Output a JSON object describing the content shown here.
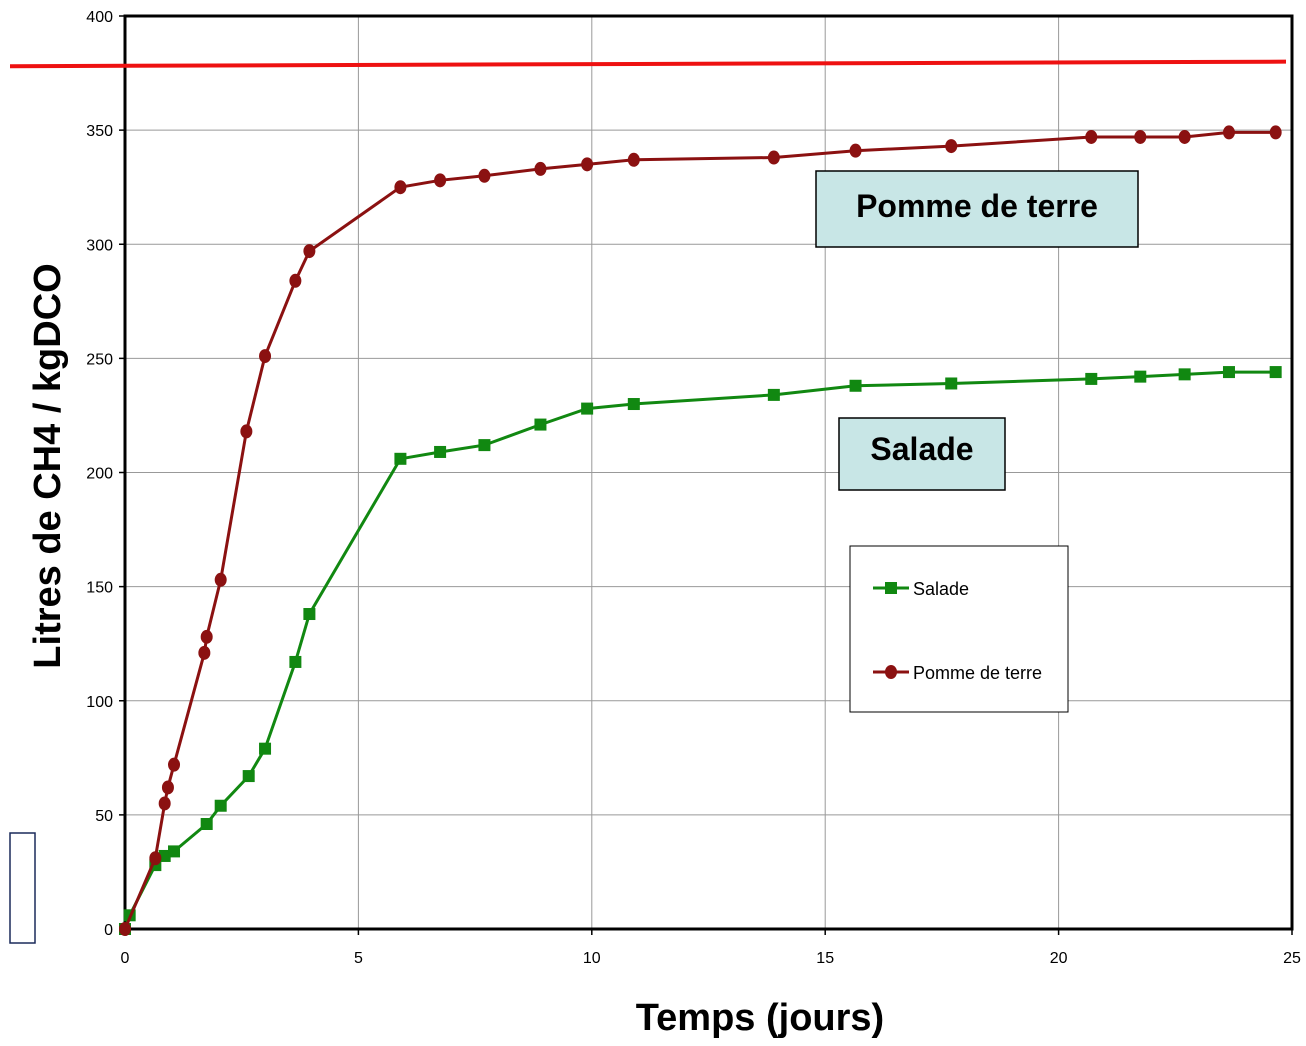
{
  "chart_data": {
    "type": "line",
    "xlabel": "Temps (jours)",
    "ylabel": "Litres de CH4 / kgDCO",
    "xlim": [
      0,
      25
    ],
    "ylim": [
      0,
      400
    ],
    "x_ticks": [
      0,
      5,
      10,
      15,
      20,
      25
    ],
    "y_ticks": [
      0,
      50,
      100,
      150,
      200,
      250,
      300,
      350,
      400
    ],
    "grid": true,
    "legend_position": "center-right",
    "reference_line": {
      "y_start": 378,
      "y_end": 380,
      "color": "#ee1111"
    },
    "series": [
      {
        "name": "Salade",
        "color": "#118811",
        "marker": "square",
        "points": [
          [
            0,
            0
          ],
          [
            0.1,
            6
          ],
          [
            0.65,
            28
          ],
          [
            0.85,
            32
          ],
          [
            1.05,
            34
          ],
          [
            1.75,
            46
          ],
          [
            2.05,
            54
          ],
          [
            2.65,
            67
          ],
          [
            3.0,
            79
          ],
          [
            3.65,
            117
          ],
          [
            3.95,
            138
          ],
          [
            5.9,
            206
          ],
          [
            6.75,
            209
          ],
          [
            7.7,
            212
          ],
          [
            8.9,
            221
          ],
          [
            9.9,
            228
          ],
          [
            10.9,
            230
          ],
          [
            13.9,
            234
          ],
          [
            15.65,
            238
          ],
          [
            17.7,
            239
          ],
          [
            20.7,
            241
          ],
          [
            21.75,
            242
          ],
          [
            22.7,
            243
          ],
          [
            23.65,
            244
          ],
          [
            24.65,
            244
          ]
        ]
      },
      {
        "name": "Pomme de terre",
        "color": "#8b1111",
        "marker": "circle",
        "points": [
          [
            0,
            0
          ],
          [
            0.65,
            31
          ],
          [
            0.85,
            55
          ],
          [
            0.92,
            62
          ],
          [
            1.05,
            72
          ],
          [
            1.7,
            121
          ],
          [
            1.75,
            128
          ],
          [
            2.05,
            153
          ],
          [
            2.6,
            218
          ],
          [
            3.0,
            251
          ],
          [
            3.65,
            284
          ],
          [
            3.95,
            297
          ],
          [
            5.9,
            325
          ],
          [
            6.75,
            328
          ],
          [
            7.7,
            330
          ],
          [
            8.9,
            333
          ],
          [
            9.9,
            335
          ],
          [
            10.9,
            337
          ],
          [
            13.9,
            338
          ],
          [
            15.65,
            341
          ],
          [
            17.7,
            343
          ],
          [
            20.7,
            347
          ],
          [
            21.75,
            347
          ],
          [
            22.7,
            347
          ],
          [
            23.65,
            349
          ],
          [
            24.65,
            349
          ]
        ]
      }
    ],
    "annotations": [
      {
        "text": "Pomme de terre",
        "fill": "#c8e6e6"
      },
      {
        "text": "Salade",
        "fill": "#c8e6e6"
      }
    ]
  }
}
